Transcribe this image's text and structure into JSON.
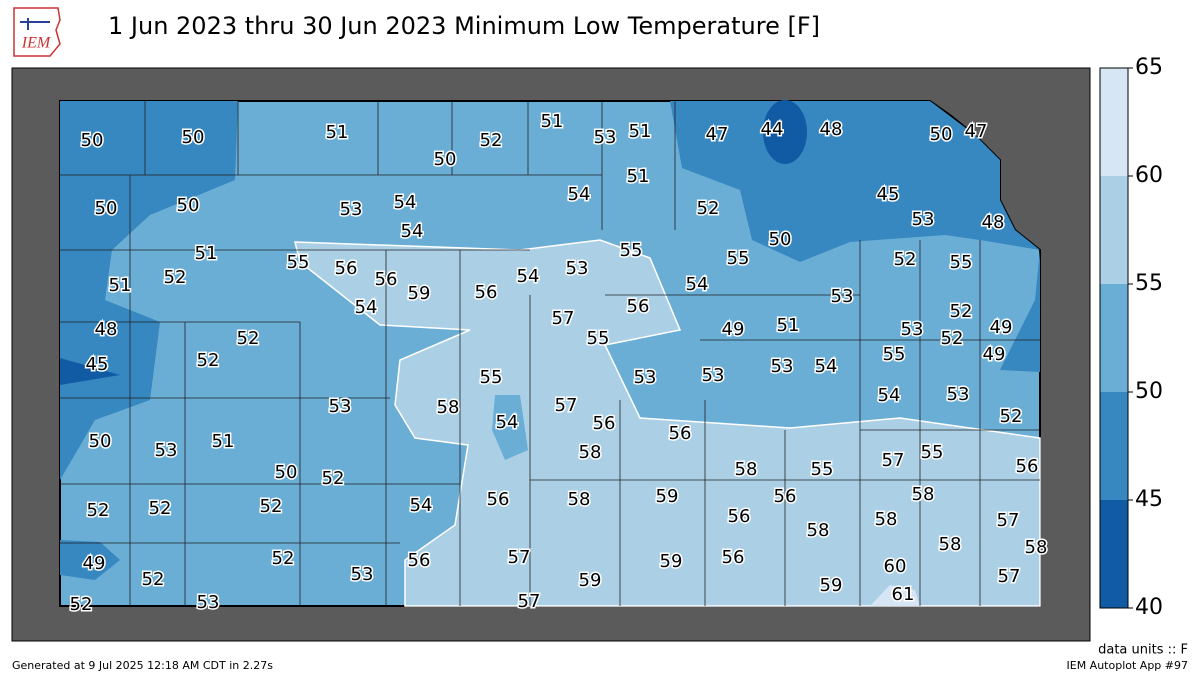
{
  "header": {
    "logo": "IEM",
    "title": "1 Jun 2023 thru 30 Jun 2023 Minimum Low Temperature [F]"
  },
  "colorbar": {
    "ticks": [
      40,
      45,
      50,
      55,
      60,
      65
    ],
    "colors": [
      "#105ba4",
      "#3787c0",
      "#6aaed6",
      "#abd0e6",
      "#d6e6f4"
    ]
  },
  "stations": [
    50,
    50,
    51,
    50,
    52,
    51,
    53,
    51,
    47,
    44,
    48,
    50,
    47,
    50,
    50,
    53,
    54,
    54,
    54,
    51,
    52,
    45,
    53,
    48,
    51,
    52,
    51,
    55,
    56,
    56,
    59,
    56,
    54,
    53,
    55,
    50,
    55,
    52,
    55,
    54,
    54,
    53,
    57,
    56,
    52,
    48,
    52,
    49,
    51,
    53,
    52,
    49,
    55,
    45,
    52,
    55,
    49,
    55,
    53,
    53,
    53,
    54,
    53,
    58,
    57,
    54,
    53,
    54,
    56,
    56,
    52,
    50,
    53,
    51,
    58,
    50,
    52,
    57,
    55,
    58,
    55,
    56,
    56,
    58,
    59,
    56,
    58,
    52,
    52,
    52,
    54,
    56,
    58,
    57,
    58,
    58,
    58,
    49,
    52,
    56,
    57,
    59,
    56,
    52,
    53,
    59,
    60,
    57,
    59,
    61,
    52,
    53,
    57
  ],
  "footer": {
    "units": "data units :: F",
    "generated": "Generated at 9 Jul 2025 12:18 AM CDT in 2.27s",
    "app": "IEM Autoplot App #97"
  }
}
